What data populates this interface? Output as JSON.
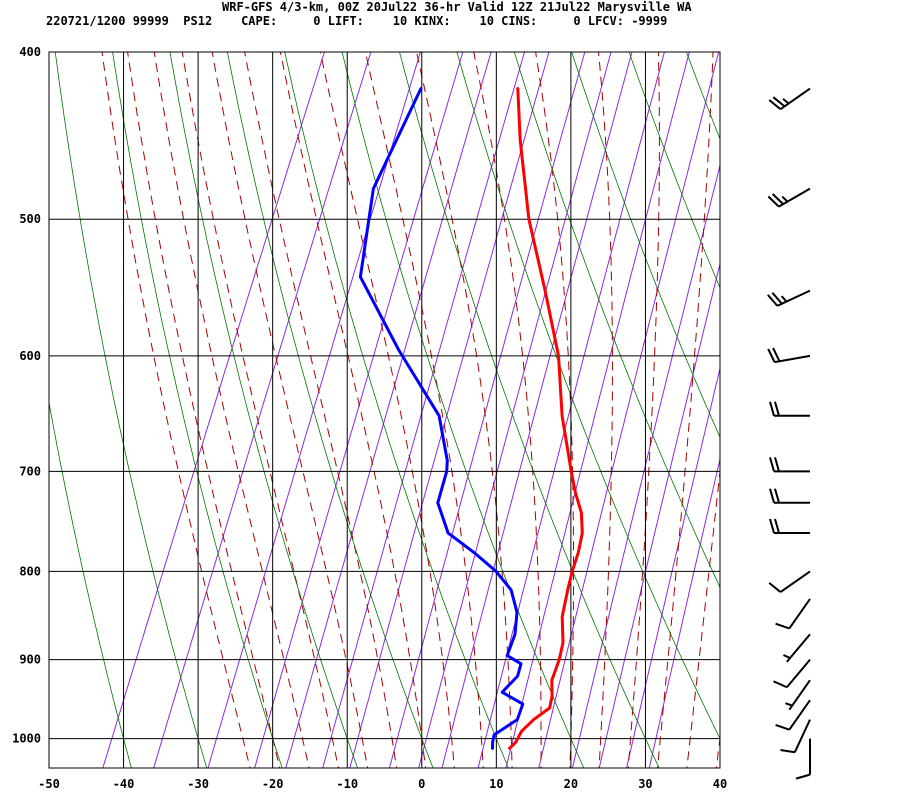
{
  "header": {
    "line1": "WRF-GFS 4/3-km, 00Z 20Jul22 36-hr Valid 12Z 21Jul22 Marysville WA",
    "line2": "220721/1200 99999  PS12    CAPE:     0 LIFT:    10 KINX:    10 CINS:     0 LFCV: -9999"
  },
  "chart_data": {
    "type": "line",
    "subtype": "skew-t log-p sounding",
    "title": "WRF-GFS 4/3-km, 00Z 20Jul22 36-hr Valid 12Z 21Jul22 Marysville WA",
    "xlabel": "",
    "ylabel": "",
    "x_ticks": [
      "-50",
      "-40",
      "-30",
      "-20",
      "-10",
      "0",
      "10",
      "20",
      "30",
      "40"
    ],
    "y_ticks": [
      "400",
      "500",
      "600",
      "700",
      "800",
      "900",
      "1000"
    ],
    "xlim": [
      -50,
      40
    ],
    "ylim": [
      1040,
      400
    ],
    "y_scale": "log",
    "grid": true,
    "colors": {
      "temperature": "#ff0000",
      "dewpoint": "#0000ff",
      "dry_adiabat": "#007700",
      "moist_adiabat": "#aa0000",
      "mixing_ratio": "#8a2be2",
      "grid": "#000000"
    },
    "series": [
      {
        "key": "temperature",
        "points": [
          [
            1013,
            12.3
          ],
          [
            1005,
            12.8
          ],
          [
            990,
            13.0
          ],
          [
            975,
            14.0
          ],
          [
            960,
            15.5
          ],
          [
            945,
            15.2
          ],
          [
            925,
            14.3
          ],
          [
            900,
            14.2
          ],
          [
            880,
            13.8
          ],
          [
            850,
            12.3
          ],
          [
            820,
            11.6
          ],
          [
            800,
            11.2
          ],
          [
            780,
            11.0
          ],
          [
            760,
            10.5
          ],
          [
            740,
            9.3
          ],
          [
            720,
            7.4
          ],
          [
            700,
            5.7
          ],
          [
            650,
            1.5
          ],
          [
            600,
            -2.2
          ],
          [
            550,
            -7.5
          ],
          [
            500,
            -13.5
          ],
          [
            450,
            -18.9
          ],
          [
            420,
            -22.0
          ]
        ]
      },
      {
        "key": "dewpoint",
        "points": [
          [
            1013,
            10.0
          ],
          [
            1005,
            9.7
          ],
          [
            995,
            9.5
          ],
          [
            975,
            11.8
          ],
          [
            955,
            11.7
          ],
          [
            940,
            8.3
          ],
          [
            920,
            9.5
          ],
          [
            905,
            9.3
          ],
          [
            895,
            7.0
          ],
          [
            870,
            6.9
          ],
          [
            845,
            6.0
          ],
          [
            820,
            4.0
          ],
          [
            800,
            1.0
          ],
          [
            780,
            -3.0
          ],
          [
            760,
            -7.5
          ],
          [
            730,
            -10.5
          ],
          [
            700,
            -11.0
          ],
          [
            690,
            -11.5
          ],
          [
            650,
            -15.0
          ],
          [
            595,
            -24.0
          ],
          [
            540,
            -33.0
          ],
          [
            480,
            -36.0
          ],
          [
            420,
            -35.0
          ]
        ]
      }
    ],
    "wind_barbs": [
      {
        "pressure": 1000,
        "direction_deg": 180,
        "speed_kt": 10
      },
      {
        "pressure": 975,
        "direction_deg": 205,
        "speed_kt": 10
      },
      {
        "pressure": 950,
        "direction_deg": 215,
        "speed_kt": 10
      },
      {
        "pressure": 925,
        "direction_deg": 215,
        "speed_kt": 5
      },
      {
        "pressure": 900,
        "direction_deg": 220,
        "speed_kt": 10
      },
      {
        "pressure": 870,
        "direction_deg": 220,
        "speed_kt": 5
      },
      {
        "pressure": 830,
        "direction_deg": 215,
        "speed_kt": 10
      },
      {
        "pressure": 800,
        "direction_deg": 235,
        "speed_kt": 10
      },
      {
        "pressure": 760,
        "direction_deg": 270,
        "speed_kt": 20
      },
      {
        "pressure": 730,
        "direction_deg": 270,
        "speed_kt": 20
      },
      {
        "pressure": 700,
        "direction_deg": 270,
        "speed_kt": 20
      },
      {
        "pressure": 650,
        "direction_deg": 270,
        "speed_kt": 20
      },
      {
        "pressure": 600,
        "direction_deg": 260,
        "speed_kt": 20
      },
      {
        "pressure": 550,
        "direction_deg": 245,
        "speed_kt": 25
      },
      {
        "pressure": 480,
        "direction_deg": 240,
        "speed_kt": 25
      },
      {
        "pressure": 420,
        "direction_deg": 235,
        "speed_kt": 25
      }
    ]
  }
}
